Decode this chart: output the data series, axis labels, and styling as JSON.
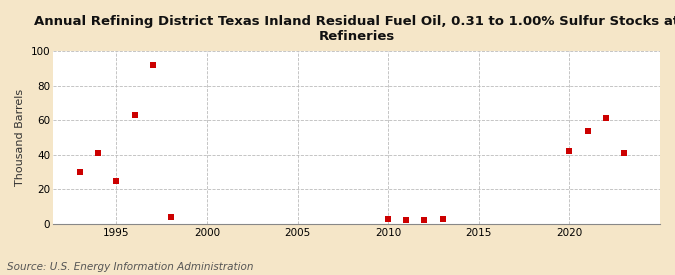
{
  "title": "Annual Refining District Texas Inland Residual Fuel Oil, 0.31 to 1.00% Sulfur Stocks at\nRefineries",
  "ylabel": "Thousand Barrels",
  "source": "Source: U.S. Energy Information Administration",
  "fig_background_color": "#f5e6c8",
  "plot_background_color": "#ffffff",
  "marker_color": "#cc0000",
  "marker": "s",
  "marker_size": 4,
  "xlim": [
    1991.5,
    2025
  ],
  "ylim": [
    0,
    100
  ],
  "yticks": [
    0,
    20,
    40,
    60,
    80,
    100
  ],
  "xticks": [
    1995,
    2000,
    2005,
    2010,
    2015,
    2020
  ],
  "data_x": [
    1993,
    1994,
    1995,
    1996,
    1997,
    1998,
    2010,
    2011,
    2012,
    2013,
    2020,
    2021,
    2022,
    2023
  ],
  "data_y": [
    30,
    41,
    25,
    63,
    92,
    4,
    3,
    2,
    2,
    3,
    42,
    54,
    61,
    41
  ]
}
